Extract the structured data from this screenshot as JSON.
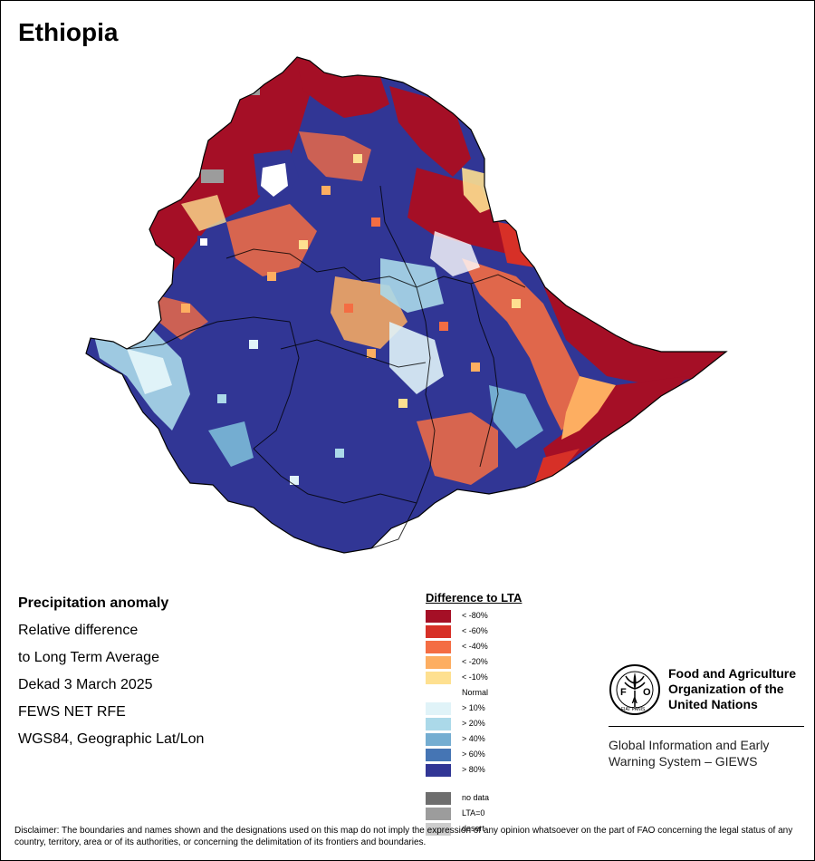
{
  "title": "Ethiopia",
  "info": {
    "line1": "Precipitation anomaly",
    "line2": "Relative difference",
    "line3": "to Long Term Average",
    "line4": "Dekad 3 March 2025",
    "line5": "FEWS NET RFE",
    "line6": "WGS84, Geographic Lat/Lon"
  },
  "legend": {
    "title": "Difference to LTA",
    "classes": [
      {
        "label": "< -80%",
        "color": "#a50f26"
      },
      {
        "label": "< -60%",
        "color": "#d73027"
      },
      {
        "label": "< -40%",
        "color": "#f46d43"
      },
      {
        "label": "< -20%",
        "color": "#fdae61"
      },
      {
        "label": "< -10%",
        "color": "#fee090"
      },
      {
        "label": "Normal",
        "color": "#ffffff"
      },
      {
        "label": "> 10%",
        "color": "#e0f3f8"
      },
      {
        "label": "> 20%",
        "color": "#abd9e9"
      },
      {
        "label": "> 40%",
        "color": "#74add1"
      },
      {
        "label": "> 60%",
        "color": "#4575b4"
      },
      {
        "label": "> 80%",
        "color": "#313695"
      }
    ],
    "special": [
      {
        "label": "no data",
        "color": "#6e6e6e"
      },
      {
        "label": "LTA=0",
        "color": "#9c9c9c"
      },
      {
        "label": "desert",
        "color": "#cccccc"
      }
    ]
  },
  "fao": {
    "logo_letters": "FAO",
    "logo_motto": "FIAT PANIS",
    "name_line1": "Food and Agriculture",
    "name_line2": "Organization of the",
    "name_line3": "United Nations",
    "system_line1": "Global Information and Early",
    "system_line2": "Warning System – GIEWS"
  },
  "disclaimer": "Disclaimer: The boundaries and names shown and the designations used on this map do not imply the expression of any opinion whatsoever on the part of FAO concerning the legal status of any country, territory, area or of its authorities, or concerning the delimitation of its frontiers and boundaries."
}
